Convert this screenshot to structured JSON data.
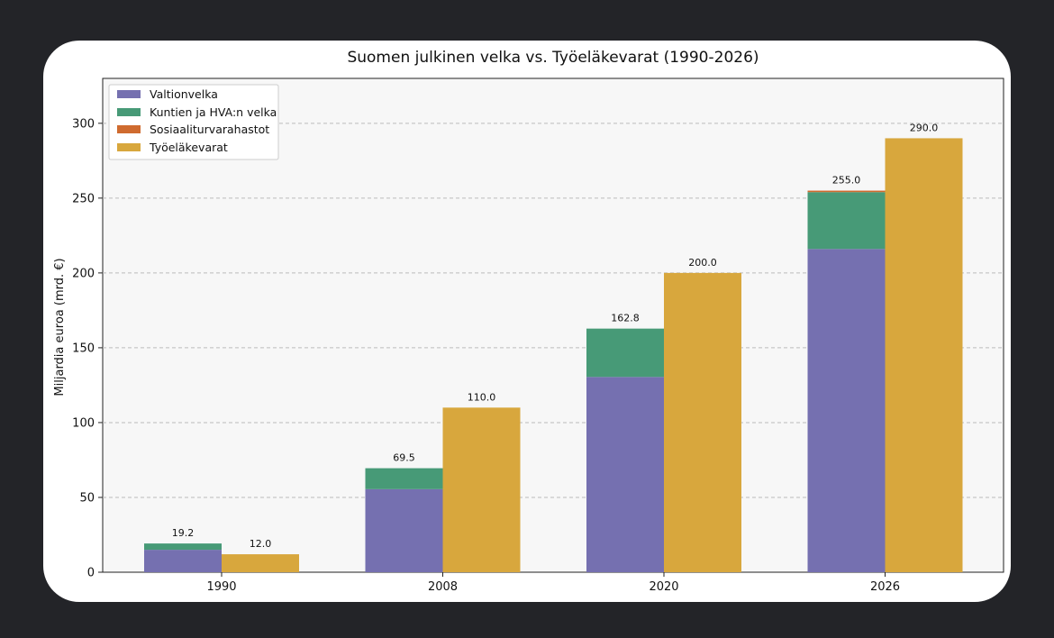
{
  "chart_data": {
    "type": "bar",
    "title": "Suomen julkinen velka vs. Työeläkevarat (1990-2026)",
    "xlabel": "",
    "ylabel": "Miljardia euroa (mrd. €)",
    "ylim": [
      0,
      330
    ],
    "yticks": [
      0,
      50,
      100,
      150,
      200,
      250,
      300
    ],
    "grid": "y-dashed",
    "legend_position": "top-left",
    "categories": [
      "1990",
      "2008",
      "2020",
      "2026"
    ],
    "stacked_series": [
      {
        "name": "Valtionvelka",
        "color": "#7570b0",
        "values": [
          15.0,
          55.5,
          130.5,
          216.0
        ]
      },
      {
        "name": "Kuntien ja HVA:n velka",
        "color": "#479a77",
        "values": [
          4.2,
          14.0,
          32.3,
          38.0
        ]
      },
      {
        "name": "Sosiaaliturvarahastot",
        "color": "#cf6b2f",
        "values": [
          0,
          0,
          0,
          1.0
        ]
      }
    ],
    "stacked_totals": [
      "19.2",
      "69.5",
      "162.8",
      "255.0"
    ],
    "side_series": {
      "name": "Työeläkevarat",
      "color": "#d8a73d",
      "values": [
        12.0,
        110.0,
        200.0,
        290.0
      ]
    },
    "side_labels": [
      "12.0",
      "110.0",
      "200.0",
      "290.0"
    ]
  }
}
